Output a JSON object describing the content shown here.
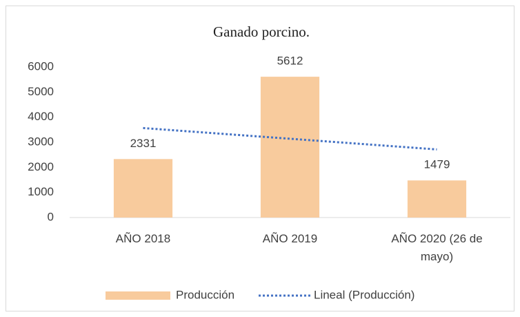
{
  "chart_data": {
    "type": "bar",
    "title": "Ganado porcino.",
    "categories": [
      "AÑO 2018",
      "AÑO 2019",
      "AÑO 2020 (26 de mayo)"
    ],
    "series": [
      {
        "name": "Producción",
        "color": "#f8cb9d",
        "values": [
          2331,
          5612,
          1479
        ]
      }
    ],
    "trendline": {
      "name": "Lineal (Producción)",
      "type": "linear",
      "color": "#4472c4"
    },
    "ylim": [
      0,
      6000
    ],
    "yticks": [
      0,
      1000,
      2000,
      3000,
      4000,
      5000,
      6000
    ],
    "grid": false,
    "data_labels": true,
    "legend": "bottom"
  }
}
